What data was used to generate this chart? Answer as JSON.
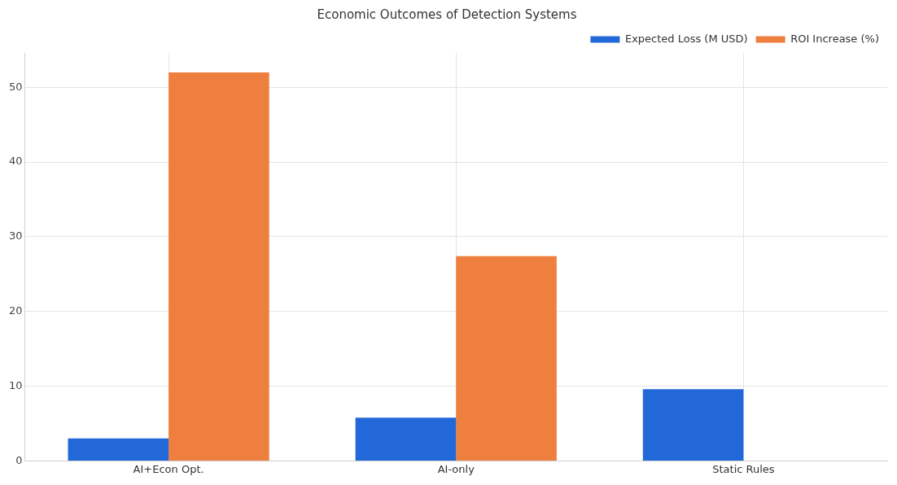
{
  "chart_data": {
    "type": "bar",
    "title": "Economic Outcomes of Detection Systems",
    "categories": [
      "AI+Econ Opt.",
      "AI-only",
      "Static Rules"
    ],
    "series": [
      {
        "name": "Expected Loss (M USD)",
        "color": "#2268d8",
        "values": [
          3.0,
          5.8,
          9.6
        ]
      },
      {
        "name": "ROI Increase (%)",
        "color": "#ef7f3f",
        "values": [
          52.0,
          27.4,
          0
        ]
      }
    ],
    "ylim": [
      0,
      54.6
    ],
    "yticks": [
      0,
      10,
      20,
      30,
      40,
      50
    ],
    "grid": true,
    "legend": "top right"
  }
}
